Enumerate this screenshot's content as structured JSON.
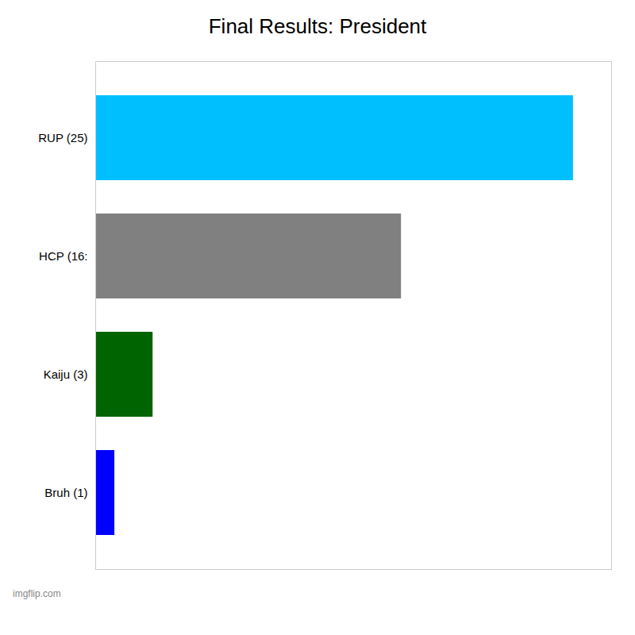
{
  "chart_data": {
    "type": "bar",
    "orientation": "horizontal",
    "title": "Final Results: President",
    "categories": [
      "RUP (25)",
      "HCP (16:",
      "Kaiju (3)",
      "Bruh (1)"
    ],
    "values": [
      25,
      16,
      3,
      1
    ],
    "colors": [
      "#00bfff",
      "#808080",
      "#006400",
      "#0000ff"
    ],
    "xlim": [
      0,
      27
    ],
    "tick_labels": "y",
    "grid": false,
    "annotations": [
      "imgflip.com"
    ]
  }
}
